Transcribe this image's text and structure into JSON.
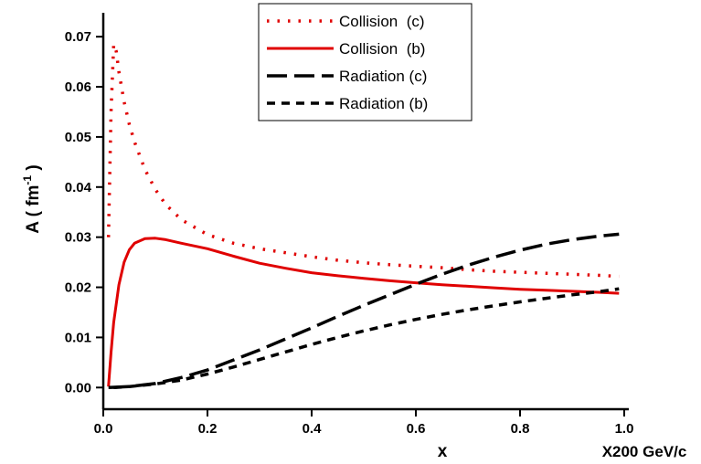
{
  "chart_data": {
    "type": "line",
    "title": "",
    "xlabel": "x",
    "xunit": "X200 GeV/c",
    "ylabel": "A ( fm",
    "ylabel_exp": "-1",
    "ylabel_close": " )",
    "xlim": [
      0.0,
      1.0
    ],
    "ylim": [
      -0.0025,
      0.0755
    ],
    "xticks": [
      "0.0",
      "0.2",
      "0.4",
      "0.6",
      "0.8",
      "1.0"
    ],
    "xtick_values": [
      0.0,
      0.2,
      0.4,
      0.6,
      0.8,
      1.0
    ],
    "yticks": [
      "0.00",
      "0.01",
      "0.02",
      "0.03",
      "0.04",
      "0.05",
      "0.06",
      "0.07"
    ],
    "ytick_values": [
      0.0,
      0.01,
      0.02,
      0.03,
      0.04,
      0.05,
      0.06,
      0.07
    ],
    "legend_position": "top-center",
    "series": [
      {
        "name": "Collision  (c)",
        "color": "#e00000",
        "dash": "dot",
        "x": [
          0.01,
          0.012,
          0.015,
          0.02,
          0.025,
          0.03,
          0.04,
          0.05,
          0.06,
          0.08,
          0.1,
          0.12,
          0.15,
          0.2,
          0.25,
          0.3,
          0.35,
          0.4,
          0.45,
          0.5,
          0.55,
          0.6,
          0.65,
          0.7,
          0.75,
          0.8,
          0.85,
          0.9,
          0.95,
          0.99
        ],
        "values": [
          0.03,
          0.04,
          0.055,
          0.0685,
          0.067,
          0.063,
          0.057,
          0.0525,
          0.049,
          0.0435,
          0.0395,
          0.0365,
          0.0335,
          0.0305,
          0.0288,
          0.0277,
          0.0269,
          0.0261,
          0.0254,
          0.0249,
          0.0245,
          0.0242,
          0.0239,
          0.0235,
          0.0232,
          0.023,
          0.0228,
          0.0226,
          0.0224,
          0.0222
        ]
      },
      {
        "name": "Collision  (b)",
        "color": "#e00000",
        "dash": "solid",
        "x": [
          0.01,
          0.015,
          0.02,
          0.03,
          0.04,
          0.05,
          0.06,
          0.08,
          0.1,
          0.12,
          0.15,
          0.2,
          0.25,
          0.3,
          0.35,
          0.4,
          0.45,
          0.5,
          0.55,
          0.6,
          0.65,
          0.7,
          0.75,
          0.8,
          0.85,
          0.9,
          0.95,
          0.99
        ],
        "values": [
          0.0002,
          0.007,
          0.013,
          0.0205,
          0.025,
          0.0275,
          0.0288,
          0.0297,
          0.0298,
          0.0295,
          0.0288,
          0.0277,
          0.0262,
          0.0248,
          0.0238,
          0.0229,
          0.0223,
          0.0218,
          0.0213,
          0.0209,
          0.0205,
          0.0202,
          0.0199,
          0.0196,
          0.0194,
          0.0192,
          0.019,
          0.0188
        ]
      },
      {
        "name": "Radiation (c)",
        "color": "#000000",
        "dash": "longdash",
        "x": [
          0.01,
          0.05,
          0.1,
          0.15,
          0.2,
          0.25,
          0.3,
          0.35,
          0.4,
          0.45,
          0.5,
          0.55,
          0.6,
          0.65,
          0.7,
          0.75,
          0.8,
          0.85,
          0.9,
          0.95,
          0.99
        ],
        "values": [
          0.0,
          0.0002,
          0.0008,
          0.002,
          0.0035,
          0.0055,
          0.0075,
          0.0097,
          0.0119,
          0.0142,
          0.0164,
          0.0185,
          0.0206,
          0.0226,
          0.0244,
          0.026,
          0.0274,
          0.0286,
          0.0295,
          0.0302,
          0.0306
        ]
      },
      {
        "name": "Radiation (b)",
        "color": "#000000",
        "dash": "dash",
        "x": [
          0.02,
          0.05,
          0.1,
          0.15,
          0.2,
          0.25,
          0.3,
          0.35,
          0.4,
          0.45,
          0.5,
          0.55,
          0.6,
          0.65,
          0.7,
          0.75,
          0.8,
          0.85,
          0.9,
          0.95,
          0.99
        ],
        "values": [
          0.0,
          0.0002,
          0.0007,
          0.0015,
          0.0027,
          0.0041,
          0.0056,
          0.0071,
          0.0086,
          0.01,
          0.0113,
          0.0125,
          0.0136,
          0.0146,
          0.0155,
          0.0163,
          0.0171,
          0.0178,
          0.0185,
          0.0191,
          0.0197
        ]
      }
    ]
  }
}
